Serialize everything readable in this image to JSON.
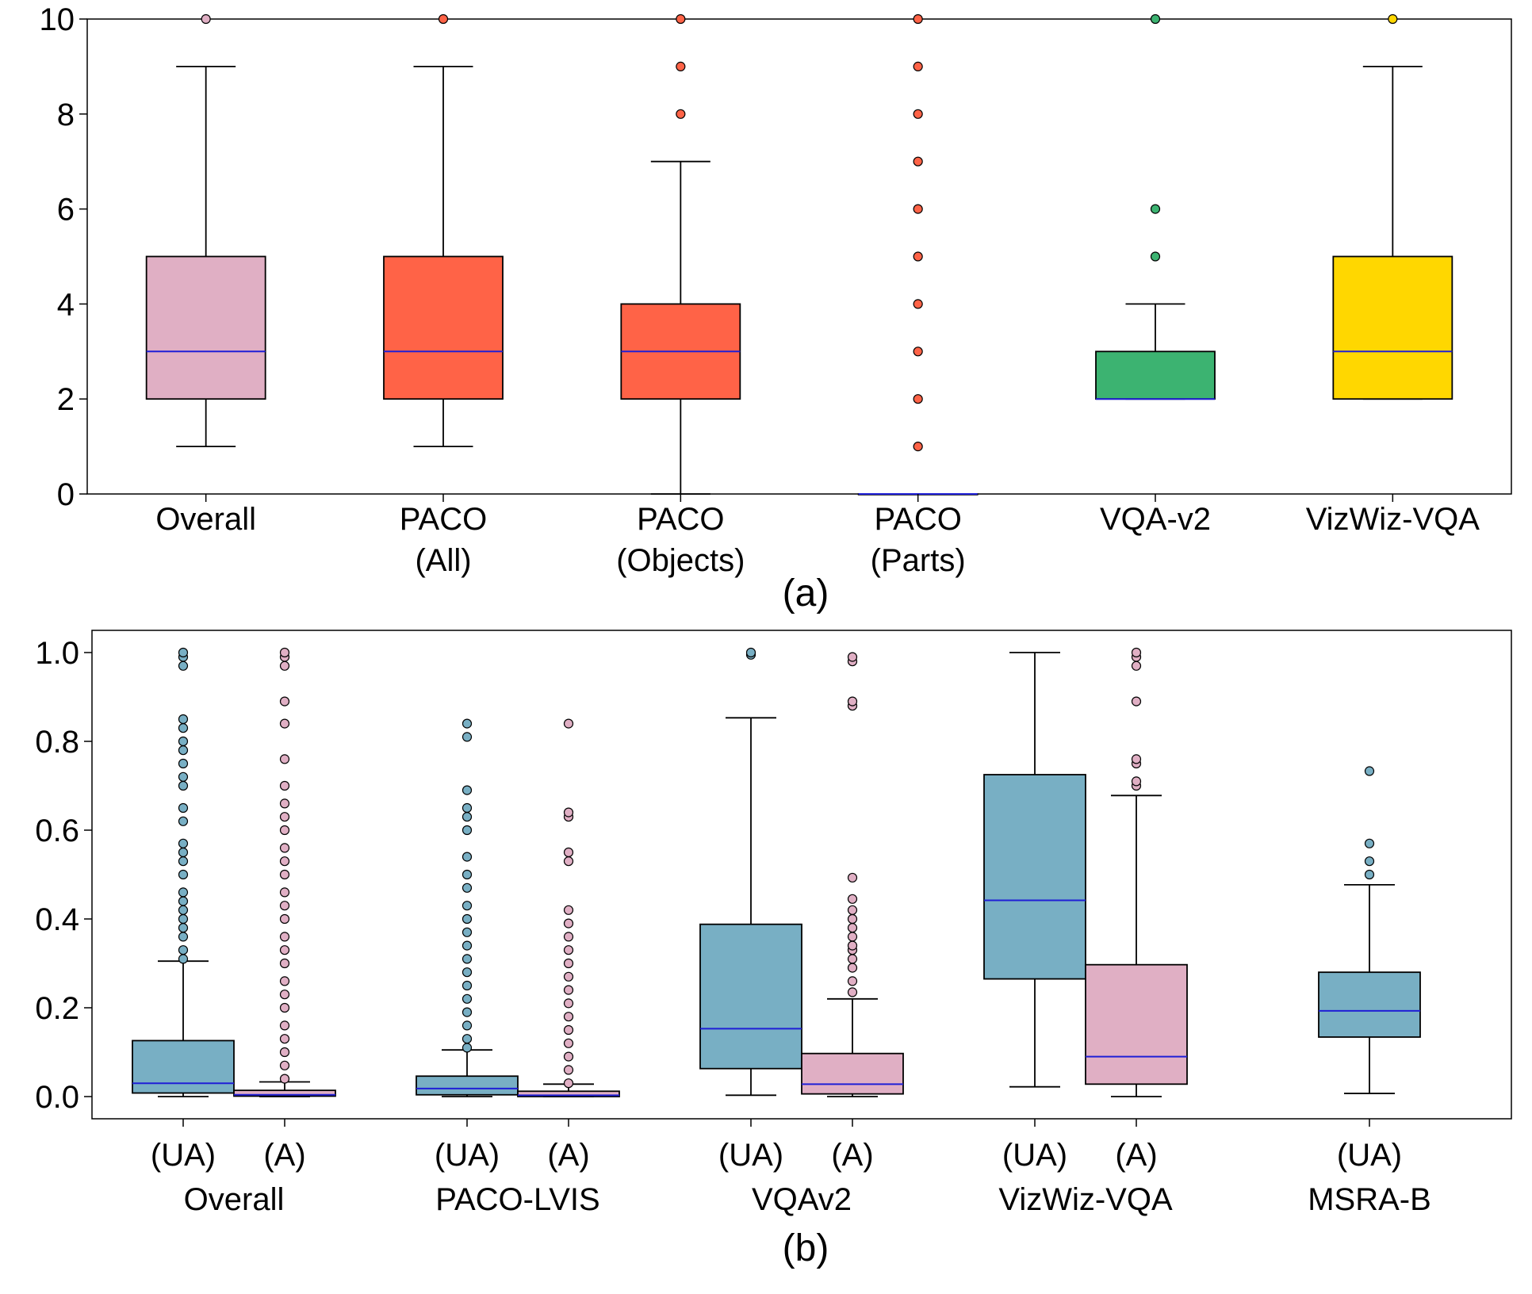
{
  "chart_data": [
    {
      "type": "box",
      "caption": "(a)",
      "ylim": [
        0,
        10
      ],
      "yticks": [
        "0",
        "2",
        "4",
        "6",
        "8",
        "10"
      ],
      "outlier_stroke": "#000000",
      "median_color": "#1f1fd6",
      "groups": [
        {
          "label_lines": [
            "Overall"
          ],
          "color": "#e0afc4",
          "whislo": 1,
          "q1": 2,
          "med": 3,
          "q3": 5,
          "whishi": 9,
          "outliers": [
            10
          ]
        },
        {
          "label_lines": [
            "PACO",
            "(All)"
          ],
          "color": "#ff6347",
          "whislo": 1,
          "q1": 2,
          "med": 3,
          "q3": 5,
          "whishi": 9,
          "outliers": [
            10
          ]
        },
        {
          "label_lines": [
            "PACO",
            "(Objects)"
          ],
          "color": "#ff6347",
          "whislo": 0,
          "q1": 2,
          "med": 3,
          "q3": 4,
          "whishi": 7,
          "outliers": [
            8,
            9,
            10
          ]
        },
        {
          "label_lines": [
            "PACO",
            "(Parts)"
          ],
          "color": "#ff6347",
          "whislo": 0,
          "q1": 0,
          "med": 0,
          "q3": 0,
          "whishi": 0,
          "outliers": [
            1,
            2,
            3,
            4,
            5,
            6,
            7,
            8,
            9,
            10
          ]
        },
        {
          "label_lines": [
            "VQA-v2"
          ],
          "color": "#3cb371",
          "whislo": 2,
          "q1": 2,
          "med": 2,
          "q3": 3,
          "whishi": 4,
          "outliers": [
            5,
            6,
            10
          ]
        },
        {
          "label_lines": [
            "VizWiz-VQA"
          ],
          "color": "#ffd700",
          "whislo": 2,
          "q1": 2,
          "med": 3,
          "q3": 5,
          "whishi": 9,
          "outliers": [
            10
          ]
        }
      ]
    },
    {
      "type": "box",
      "caption": "(b)",
      "ylim": [
        -0.05,
        1.05
      ],
      "yticks": [
        "0.0",
        "0.2",
        "0.4",
        "0.6",
        "0.8",
        "1.0"
      ],
      "median_color": "#1f1fd6",
      "legend_colors": {
        "UA": "#78afc4",
        "A": "#e0afc4"
      },
      "groups": [
        {
          "label": "Overall",
          "boxes": [
            {
              "tag": "(UA)",
              "color": "#78afc4",
              "whislo": 0.0,
              "q1": 0.008,
              "med": 0.03,
              "q3": 0.126,
              "whishi": 0.305,
              "outliers": [
                0.31,
                0.33,
                0.36,
                0.38,
                0.4,
                0.42,
                0.44,
                0.46,
                0.5,
                0.53,
                0.55,
                0.57,
                0.62,
                0.65,
                0.7,
                0.72,
                0.75,
                0.78,
                0.8,
                0.83,
                0.85,
                0.97,
                0.99,
                1.0
              ]
            },
            {
              "tag": "(A)",
              "color": "#e0afc4",
              "whislo": 0.0,
              "q1": 0.001,
              "med": 0.004,
              "q3": 0.014,
              "whishi": 0.033,
              "outliers": [
                0.04,
                0.07,
                0.1,
                0.13,
                0.16,
                0.2,
                0.23,
                0.26,
                0.3,
                0.33,
                0.36,
                0.4,
                0.43,
                0.46,
                0.5,
                0.53,
                0.56,
                0.6,
                0.63,
                0.66,
                0.7,
                0.76,
                0.84,
                0.89,
                0.97,
                0.99,
                1.0
              ]
            }
          ]
        },
        {
          "label": "PACO-LVIS",
          "boxes": [
            {
              "tag": "(UA)",
              "color": "#78afc4",
              "whislo": 0.0,
              "q1": 0.004,
              "med": 0.018,
              "q3": 0.046,
              "whishi": 0.105,
              "outliers": [
                0.11,
                0.13,
                0.16,
                0.19,
                0.22,
                0.25,
                0.28,
                0.31,
                0.34,
                0.37,
                0.4,
                0.43,
                0.47,
                0.5,
                0.54,
                0.6,
                0.63,
                0.65,
                0.69,
                0.81,
                0.84
              ]
            },
            {
              "tag": "(A)",
              "color": "#e0afc4",
              "whislo": 0.0,
              "q1": 0.0,
              "med": 0.003,
              "q3": 0.012,
              "whishi": 0.028,
              "outliers": [
                0.03,
                0.06,
                0.09,
                0.12,
                0.15,
                0.18,
                0.21,
                0.24,
                0.27,
                0.3,
                0.33,
                0.36,
                0.39,
                0.42,
                0.53,
                0.55,
                0.63,
                0.64,
                0.84
              ]
            }
          ]
        },
        {
          "label": "VQAv2",
          "boxes": [
            {
              "tag": "(UA)",
              "color": "#78afc4",
              "whislo": 0.003,
              "q1": 0.063,
              "med": 0.153,
              "q3": 0.388,
              "whishi": 0.853,
              "outliers": [
                0.995,
                1.0
              ]
            },
            {
              "tag": "(A)",
              "color": "#e0afc4",
              "whislo": 0.0,
              "q1": 0.006,
              "med": 0.028,
              "q3": 0.097,
              "whishi": 0.22,
              "outliers": [
                0.235,
                0.26,
                0.29,
                0.31,
                0.33,
                0.34,
                0.36,
                0.38,
                0.4,
                0.42,
                0.445,
                0.493,
                0.88,
                0.89,
                0.98,
                0.99
              ]
            }
          ]
        },
        {
          "label": "VizWiz-VQA",
          "boxes": [
            {
              "tag": "(UA)",
              "color": "#78afc4",
              "whislo": 0.022,
              "q1": 0.265,
              "med": 0.442,
              "q3": 0.725,
              "whishi": 1.0,
              "outliers": []
            },
            {
              "tag": "(A)",
              "color": "#e0afc4",
              "whislo": 0.0,
              "q1": 0.028,
              "med": 0.09,
              "q3": 0.297,
              "whishi": 0.678,
              "outliers": [
                0.7,
                0.71,
                0.75,
                0.76,
                0.89,
                0.97,
                0.99,
                1.0
              ]
            }
          ]
        },
        {
          "label": "MSRA-B",
          "boxes": [
            {
              "tag": "(UA)",
              "color": "#78afc4",
              "whislo": 0.007,
              "q1": 0.134,
              "med": 0.193,
              "q3": 0.28,
              "whishi": 0.477,
              "outliers": [
                0.5,
                0.53,
                0.57,
                0.733
              ]
            }
          ]
        }
      ]
    }
  ]
}
